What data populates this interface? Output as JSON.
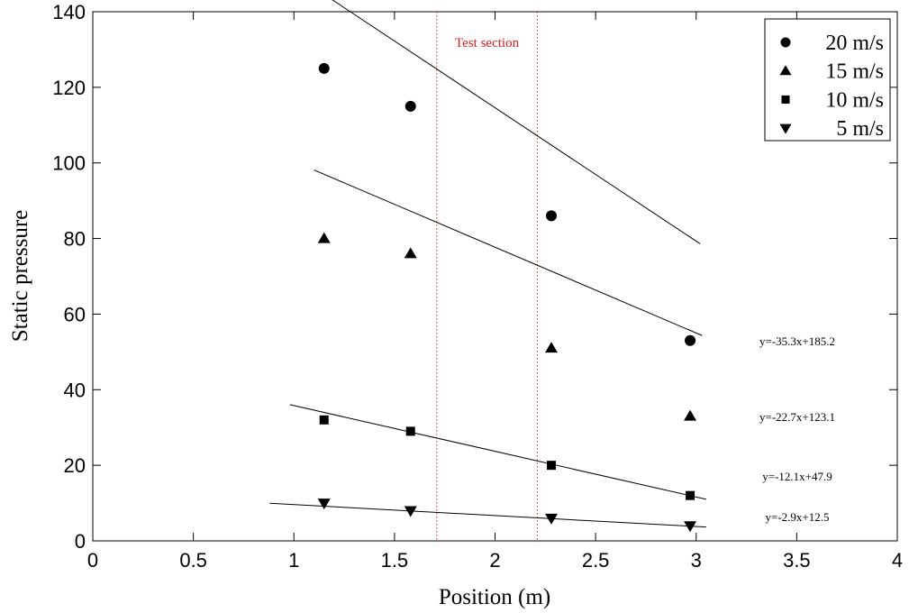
{
  "chart_data": {
    "type": "scatter",
    "title": "",
    "xlabel": "Position (m)",
    "ylabel": "Static pressure",
    "xlim": [
      0,
      4
    ],
    "ylim": [
      0,
      140
    ],
    "x_ticks": [
      "0",
      "0.5",
      "1",
      "1.5",
      "2",
      "2.5",
      "3",
      "3.5",
      "4"
    ],
    "y_ticks": [
      "0",
      "20",
      "40",
      "60",
      "80",
      "100",
      "120",
      "140"
    ],
    "grid": false,
    "legend_position": "top-right",
    "series": [
      {
        "name": "20 m/s",
        "marker": "circle",
        "x": [
          1.15,
          1.58,
          2.28,
          2.97
        ],
        "y": [
          125,
          115,
          86,
          53
        ],
        "fit": {
          "x_range": [
            1.15,
            3.02
          ],
          "slope": -35.3,
          "intercept": 185.2,
          "label": "y=-35.3x+185.2"
        }
      },
      {
        "name": "15 m/s",
        "marker": "triangle-up",
        "x": [
          1.15,
          1.58,
          2.28,
          2.97
        ],
        "y": [
          80,
          76,
          51,
          33
        ],
        "fit": {
          "x_range": [
            1.1,
            3.03
          ],
          "slope": -22.7,
          "intercept": 123.1,
          "label": "y=-22.7x+123.1"
        }
      },
      {
        "name": "10 m/s",
        "marker": "square",
        "x": [
          1.15,
          1.58,
          2.28,
          2.97
        ],
        "y": [
          32,
          29,
          20,
          12
        ],
        "fit": {
          "x_range": [
            0.98,
            3.05
          ],
          "slope": -12.1,
          "intercept": 47.9,
          "label": "y=-12.1x+47.9"
        }
      },
      {
        "name": "5 m/s",
        "marker": "triangle-down",
        "x": [
          1.15,
          1.58,
          2.28,
          2.97
        ],
        "y": [
          10,
          8,
          6,
          4
        ],
        "fit": {
          "x_range": [
            0.88,
            3.05
          ],
          "slope": -2.9,
          "intercept": 12.5,
          "label": "y=-2.9x+12.5"
        }
      }
    ],
    "annotations": {
      "test_section": {
        "label": "Test section",
        "x_start": 1.71,
        "x_end": 2.21,
        "color": "#e31a1c"
      }
    }
  }
}
